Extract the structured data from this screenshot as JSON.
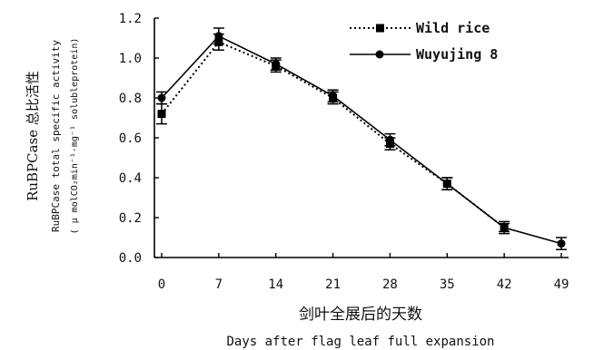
{
  "chart_data": {
    "type": "line",
    "xlabel_cn": "剑叶全展后的天数",
    "xlabel_en": "Days after flag leaf full expansion",
    "ylabel_line1": "RuBPCase 总比活性",
    "ylabel_line2": "RuBPCase total specific activity",
    "ylabel_line3": "( μ molCO₂min⁻¹·mg⁻¹ solubleprotein)",
    "x": [
      0,
      7,
      14,
      21,
      28,
      35,
      42,
      49
    ],
    "x_tick_labels": [
      "0",
      "7",
      "14",
      "21",
      "28",
      "35",
      "42",
      "49"
    ],
    "y_tick_labels": [
      "0.0",
      "0.2",
      "0.4",
      "0.6",
      "0.8",
      "1.0",
      "1.2"
    ],
    "ylim": [
      0,
      1.2
    ],
    "grid": false,
    "legend_position": "top-right",
    "series": [
      {
        "name": "Wild rice",
        "marker": "square",
        "line_style": "dotted",
        "values": [
          0.72,
          1.08,
          0.96,
          0.8,
          0.57,
          0.37,
          0.15,
          null
        ],
        "errors": [
          0.05,
          0.04,
          0.03,
          0.03,
          0.03,
          0.03,
          0.02,
          null
        ]
      },
      {
        "name": "Wuyujing 8",
        "marker": "circle",
        "line_style": "solid",
        "values": [
          0.8,
          1.11,
          0.97,
          0.81,
          0.59,
          0.37,
          0.15,
          0.07
        ],
        "errors": [
          0.03,
          0.04,
          0.03,
          0.03,
          0.03,
          0.03,
          0.03,
          0.03
        ]
      }
    ]
  }
}
